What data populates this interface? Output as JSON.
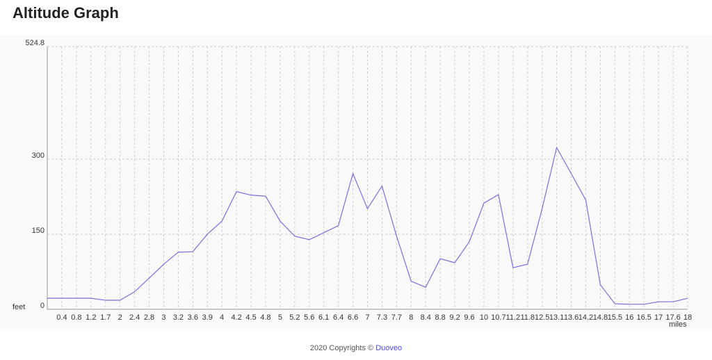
{
  "chart_data": {
    "type": "line",
    "title": "Altitude Graph",
    "y_label": "feet",
    "x_label": "miles",
    "categories": [
      null,
      "0.4",
      "0.8",
      "1.2",
      "1.7",
      "2",
      "2.4",
      "2.8",
      "3",
      "3.2",
      "3.6",
      "3.9",
      "4",
      "4.2",
      "4.5",
      "4.8",
      "5",
      "5.2",
      "5.6",
      "6.1",
      "6.4",
      "6.6",
      "7",
      "7.3",
      "7.7",
      "8",
      "8.4",
      "8.8",
      "9.2",
      "9.6",
      "10",
      "10.7",
      "11.2",
      "11.8",
      "12.5",
      "13.1",
      "13.6",
      "14.2",
      "14.8",
      "15.5",
      "16",
      "16.5",
      "17",
      "17.6",
      "18"
    ],
    "values": [
      22,
      22,
      22,
      22,
      18,
      18,
      35,
      62,
      90,
      114,
      115,
      150,
      176,
      235,
      228,
      226,
      176,
      146,
      139,
      153,
      167,
      271,
      201,
      246,
      146,
      56,
      44,
      101,
      93,
      135,
      212,
      229,
      83,
      90,
      201,
      323,
      271,
      218,
      49,
      11,
      10,
      10,
      15,
      15,
      22
    ],
    "color": "#7b6fe0",
    "ylim": [
      0,
      524.8
    ],
    "yticks": [
      0,
      150,
      300,
      524.8
    ],
    "grid": true
  },
  "footer": {
    "copyright": "2020 Copyrights ©",
    "link": "Duoveo"
  }
}
